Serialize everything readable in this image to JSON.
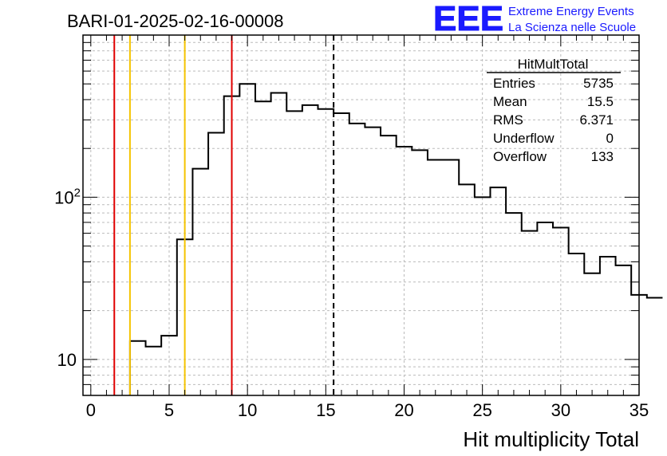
{
  "run_title": "BARI-01-2025-02-16-00008",
  "logo": {
    "text": "EEE",
    "line1": "Extreme Energy Events",
    "line2": "La Scienza nelle Scuole",
    "color": "#1a1aff"
  },
  "stats": {
    "title": "HitMultTotal",
    "rows": [
      {
        "label": "Entries",
        "value": "5735"
      },
      {
        "label": "Mean",
        "value": "15.5"
      },
      {
        "label": "RMS",
        "value": "6.371"
      },
      {
        "label": "Underflow",
        "value": "0"
      },
      {
        "label": "Overflow",
        "value": "133"
      }
    ]
  },
  "chart_data": {
    "type": "bar",
    "histogram": true,
    "title": "",
    "xlabel": "Hit multiplicity Total",
    "ylabel": "",
    "xlim": [
      -0.5,
      35
    ],
    "ylim": [
      6,
      1000
    ],
    "y_scale": "log",
    "grid": true,
    "x_ticks": [
      "0",
      "5",
      "10",
      "15",
      "20",
      "25",
      "30",
      "35"
    ],
    "y_ticks": [
      {
        "value": 10,
        "label": "10"
      },
      {
        "value": 100,
        "label": "10",
        "sup": "2"
      }
    ],
    "bin_width": 1,
    "bin_start": 2.5,
    "values": [
      13,
      12,
      14,
      55,
      150,
      250,
      420,
      500,
      390,
      440,
      340,
      370,
      350,
      330,
      285,
      270,
      240,
      205,
      195,
      170,
      170,
      120,
      100,
      115,
      80,
      62,
      70,
      65,
      45,
      34,
      43,
      38,
      25,
      24
    ],
    "vertical_lines": [
      {
        "x": 1.5,
        "color": "#e00000",
        "style": "solid"
      },
      {
        "x": 2.5,
        "color": "#f5c400",
        "style": "solid"
      },
      {
        "x": 6,
        "color": "#f5c400",
        "style": "solid"
      },
      {
        "x": 9,
        "color": "#e00000",
        "style": "solid"
      },
      {
        "x": 15.5,
        "color": "#000000",
        "style": "dashed"
      }
    ]
  }
}
